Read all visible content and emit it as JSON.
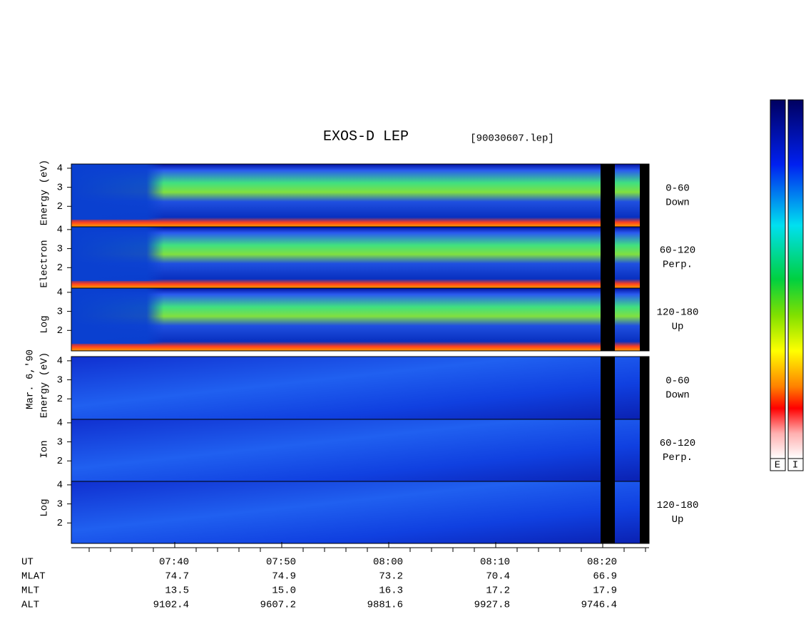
{
  "header": {
    "title": "EXOS-D LEP",
    "file": "[90030607.lep]"
  },
  "left_labels": {
    "date": "Mar. 6,'90",
    "electron": [
      "Log",
      "Electron",
      "Energy (eV)"
    ],
    "ion": [
      "Log",
      "Ion",
      "Energy (eV)"
    ]
  },
  "panels": [
    {
      "label": "0-60",
      "sublabel": "Down"
    },
    {
      "label": "60-120",
      "sublabel": "Perp."
    },
    {
      "label": "120-180",
      "sublabel": "Up"
    },
    {
      "label": "0-60",
      "sublabel": "Down"
    },
    {
      "label": "60-120",
      "sublabel": "Perp."
    },
    {
      "label": "120-180",
      "sublabel": "Up"
    }
  ],
  "energy_ticks": [
    2,
    3,
    4
  ],
  "time_axis": {
    "rows": [
      {
        "name": "UT",
        "values": [
          "07:40",
          "07:50",
          "08:00",
          "08:10",
          "08:20"
        ]
      },
      {
        "name": "MLAT",
        "values": [
          "74.7",
          "74.9",
          "73.2",
          "70.4",
          "66.9"
        ]
      },
      {
        "name": "MLT",
        "values": [
          "13.5",
          "15.0",
          "16.3",
          "17.2",
          "17.9"
        ]
      },
      {
        "name": "ALT",
        "values": [
          "9102.4",
          "9607.2",
          "9881.6",
          "9927.8",
          "9746.4"
        ]
      }
    ]
  },
  "colorbar": {
    "labels": [
      "E",
      "I"
    ]
  }
}
